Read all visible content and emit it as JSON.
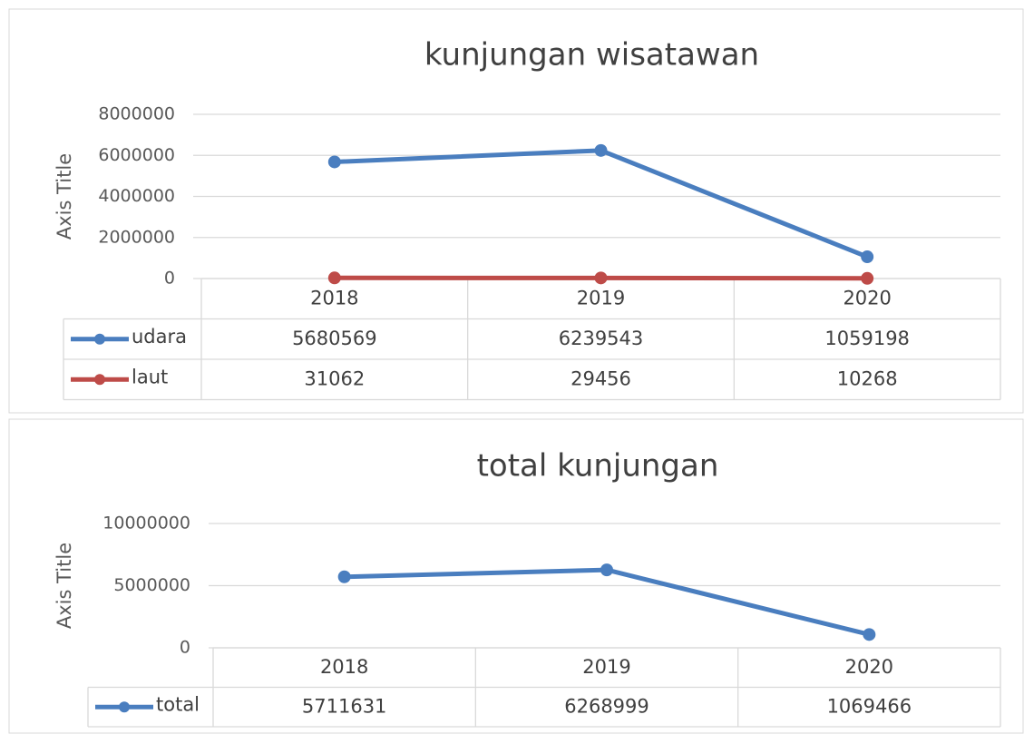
{
  "chart_data": [
    {
      "type": "line",
      "title": "kunjungan wisatawan",
      "y_label": "Axis Title",
      "categories": [
        "2018",
        "2019",
        "2020"
      ],
      "series": [
        {
          "name": "udara",
          "color": "#4a7ebf",
          "values": [
            5680569,
            6239543,
            1059198
          ]
        },
        {
          "name": "laut",
          "color": "#be4b48",
          "values": [
            31062,
            29456,
            10268
          ]
        }
      ],
      "ylim": [
        0,
        8000000
      ],
      "yticks": [
        0,
        2000000,
        4000000,
        6000000,
        8000000
      ],
      "grid": true,
      "data_table": true
    },
    {
      "type": "line",
      "title": "total kunjungan",
      "y_label": "Axis Title",
      "categories": [
        "2018",
        "2019",
        "2020"
      ],
      "series": [
        {
          "name": "total",
          "color": "#4a7ebf",
          "values": [
            5711631,
            6268999,
            1069466
          ]
        }
      ],
      "ylim": [
        0,
        10000000
      ],
      "yticks": [
        0,
        5000000,
        10000000
      ],
      "grid": true,
      "data_table": true
    }
  ]
}
